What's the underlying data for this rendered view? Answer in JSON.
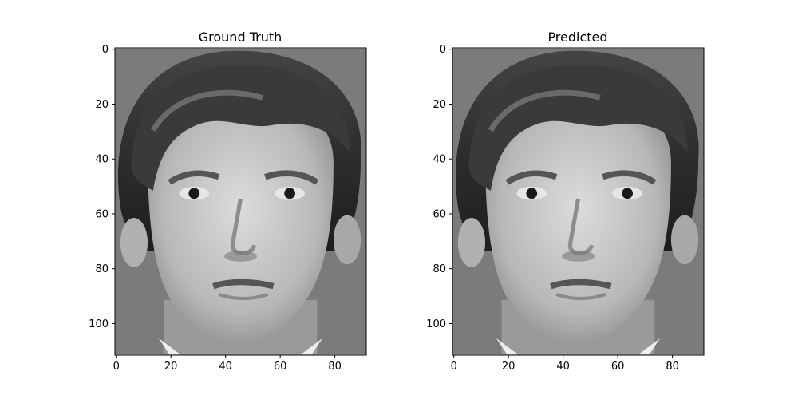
{
  "chart_data": [
    {
      "type": "heatmap",
      "title": "Ground Truth",
      "image": "grayscale face photograph",
      "xlim": [
        -0.5,
        91.5
      ],
      "ylim": [
        111.5,
        -0.5
      ],
      "xticks": [
        0,
        20,
        40,
        60,
        80
      ],
      "yticks": [
        0,
        20,
        40,
        60,
        80,
        100
      ],
      "grid": false
    },
    {
      "type": "heatmap",
      "title": "Predicted",
      "image": "grayscale face photograph",
      "xlim": [
        -0.5,
        91.5
      ],
      "ylim": [
        111.5,
        -0.5
      ],
      "xticks": [
        0,
        20,
        40,
        60,
        80
      ],
      "yticks": [
        0,
        20,
        40,
        60,
        80,
        100
      ],
      "grid": false
    }
  ],
  "colors": {
    "background": "#ffffff",
    "image_bg": "#7b7b7b",
    "hair": "#333333",
    "skin": "#c8c8c8"
  }
}
